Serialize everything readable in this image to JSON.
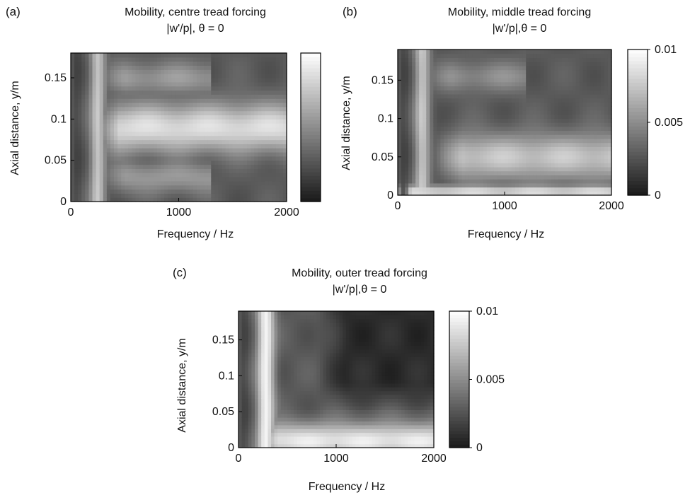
{
  "chart_data": [
    {
      "type": "heatmap",
      "panel_label": "(a)",
      "title": "Mobility, centre tread forcing",
      "subtitle": "|w'/p|, θ = 0",
      "xlabel": "Frequency / Hz",
      "ylabel": "Axial distance, y/m",
      "xlim": [
        0,
        2000
      ],
      "ylim": [
        0,
        0.18
      ],
      "xticks": [
        0,
        1000,
        2000
      ],
      "xtick_labels": [
        "0",
        "1000",
        "2000"
      ],
      "yticks": [
        0,
        0.05,
        0.1,
        0.15
      ],
      "ytick_labels": [
        "0",
        "0.05",
        "0.1",
        "0.15"
      ],
      "colorbar": {
        "range": [
          0,
          0.01
        ],
        "ticks": [],
        "tick_labels": []
      },
      "colormap": "gray",
      "features": [
        {
          "kind": "ridge",
          "y_center": 0.09,
          "f_start": 350,
          "f_end": 2000,
          "level": 0.0085,
          "width": 0.03
        },
        {
          "kind": "ridge",
          "y_center": 0.15,
          "f_start": 400,
          "f_end": 1300,
          "level": 0.0055,
          "width": 0.02
        },
        {
          "kind": "ridge",
          "y_center": 0.03,
          "f_start": 400,
          "f_end": 1300,
          "level": 0.0055,
          "width": 0.02
        },
        {
          "kind": "band",
          "f_center": 250,
          "level": 0.0075,
          "width": 70
        },
        {
          "kind": "band",
          "f_center": 60,
          "level": 0.002,
          "width": 40
        }
      ]
    },
    {
      "type": "heatmap",
      "panel_label": "(b)",
      "title": "Mobility, middle tread forcing",
      "subtitle": "|w'/p|,θ = 0",
      "xlabel": "Frequency / Hz",
      "ylabel": "Axial distance, y/m",
      "xlim": [
        0,
        2000
      ],
      "ylim": [
        0,
        0.19
      ],
      "xticks": [
        0,
        1000,
        2000
      ],
      "xtick_labels": [
        "0",
        "1000",
        "2000"
      ],
      "yticks": [
        0,
        0.05,
        0.1,
        0.15
      ],
      "ytick_labels": [
        "0",
        "0.05",
        "0.1",
        "0.15"
      ],
      "colorbar": {
        "range": [
          0,
          0.01
        ],
        "ticks": [
          0,
          0.005,
          0.01
        ],
        "tick_labels": [
          "0",
          "0.005",
          "0.01"
        ]
      },
      "colormap": "gray",
      "features": [
        {
          "kind": "ridge",
          "y_center": 0.05,
          "f_start": 500,
          "f_end": 2000,
          "level": 0.0075,
          "width": 0.03
        },
        {
          "kind": "ridge",
          "y_center": 0.155,
          "f_start": 400,
          "f_end": 1200,
          "level": 0.005,
          "width": 0.02
        },
        {
          "kind": "ridge",
          "y_center": 0.005,
          "f_start": 0,
          "f_end": 2000,
          "level": 0.0085,
          "width": 0.008
        },
        {
          "kind": "band",
          "f_center": 230,
          "level": 0.0075,
          "width": 70
        },
        {
          "kind": "band",
          "f_center": 60,
          "level": 0.002,
          "width": 40
        }
      ]
    },
    {
      "type": "heatmap",
      "panel_label": "(c)",
      "title": "Mobility, outer tread forcing",
      "subtitle": "|w'/p|,θ = 0",
      "xlabel": "Frequency / Hz",
      "ylabel": "Axial distance, y/m",
      "xlim": [
        0,
        2000
      ],
      "ylim": [
        0,
        0.19
      ],
      "xticks": [
        0,
        1000,
        2000
      ],
      "xtick_labels": [
        "0",
        "1000",
        "2000"
      ],
      "yticks": [
        0,
        0.05,
        0.1,
        0.15
      ],
      "ytick_labels": [
        "0",
        "0.05",
        "0.1",
        "0.15"
      ],
      "colorbar": {
        "range": [
          0,
          0.01
        ],
        "ticks": [
          0,
          0.005,
          0.01
        ],
        "tick_labels": [
          "0",
          "0.005",
          "0.01"
        ]
      },
      "colormap": "gray",
      "features": [
        {
          "kind": "ridge",
          "y_center": 0.01,
          "f_start": 300,
          "f_end": 2000,
          "level": 0.009,
          "width": 0.025
        },
        {
          "kind": "band",
          "f_center": 280,
          "level": 0.0095,
          "width": 90
        },
        {
          "kind": "band",
          "f_center": 60,
          "level": 0.002,
          "width": 40
        },
        {
          "kind": "dark-region",
          "f_start": 1000,
          "f_end": 2000,
          "y_start": 0.07,
          "y_end": 0.19,
          "level": 0.0008
        }
      ]
    }
  ]
}
